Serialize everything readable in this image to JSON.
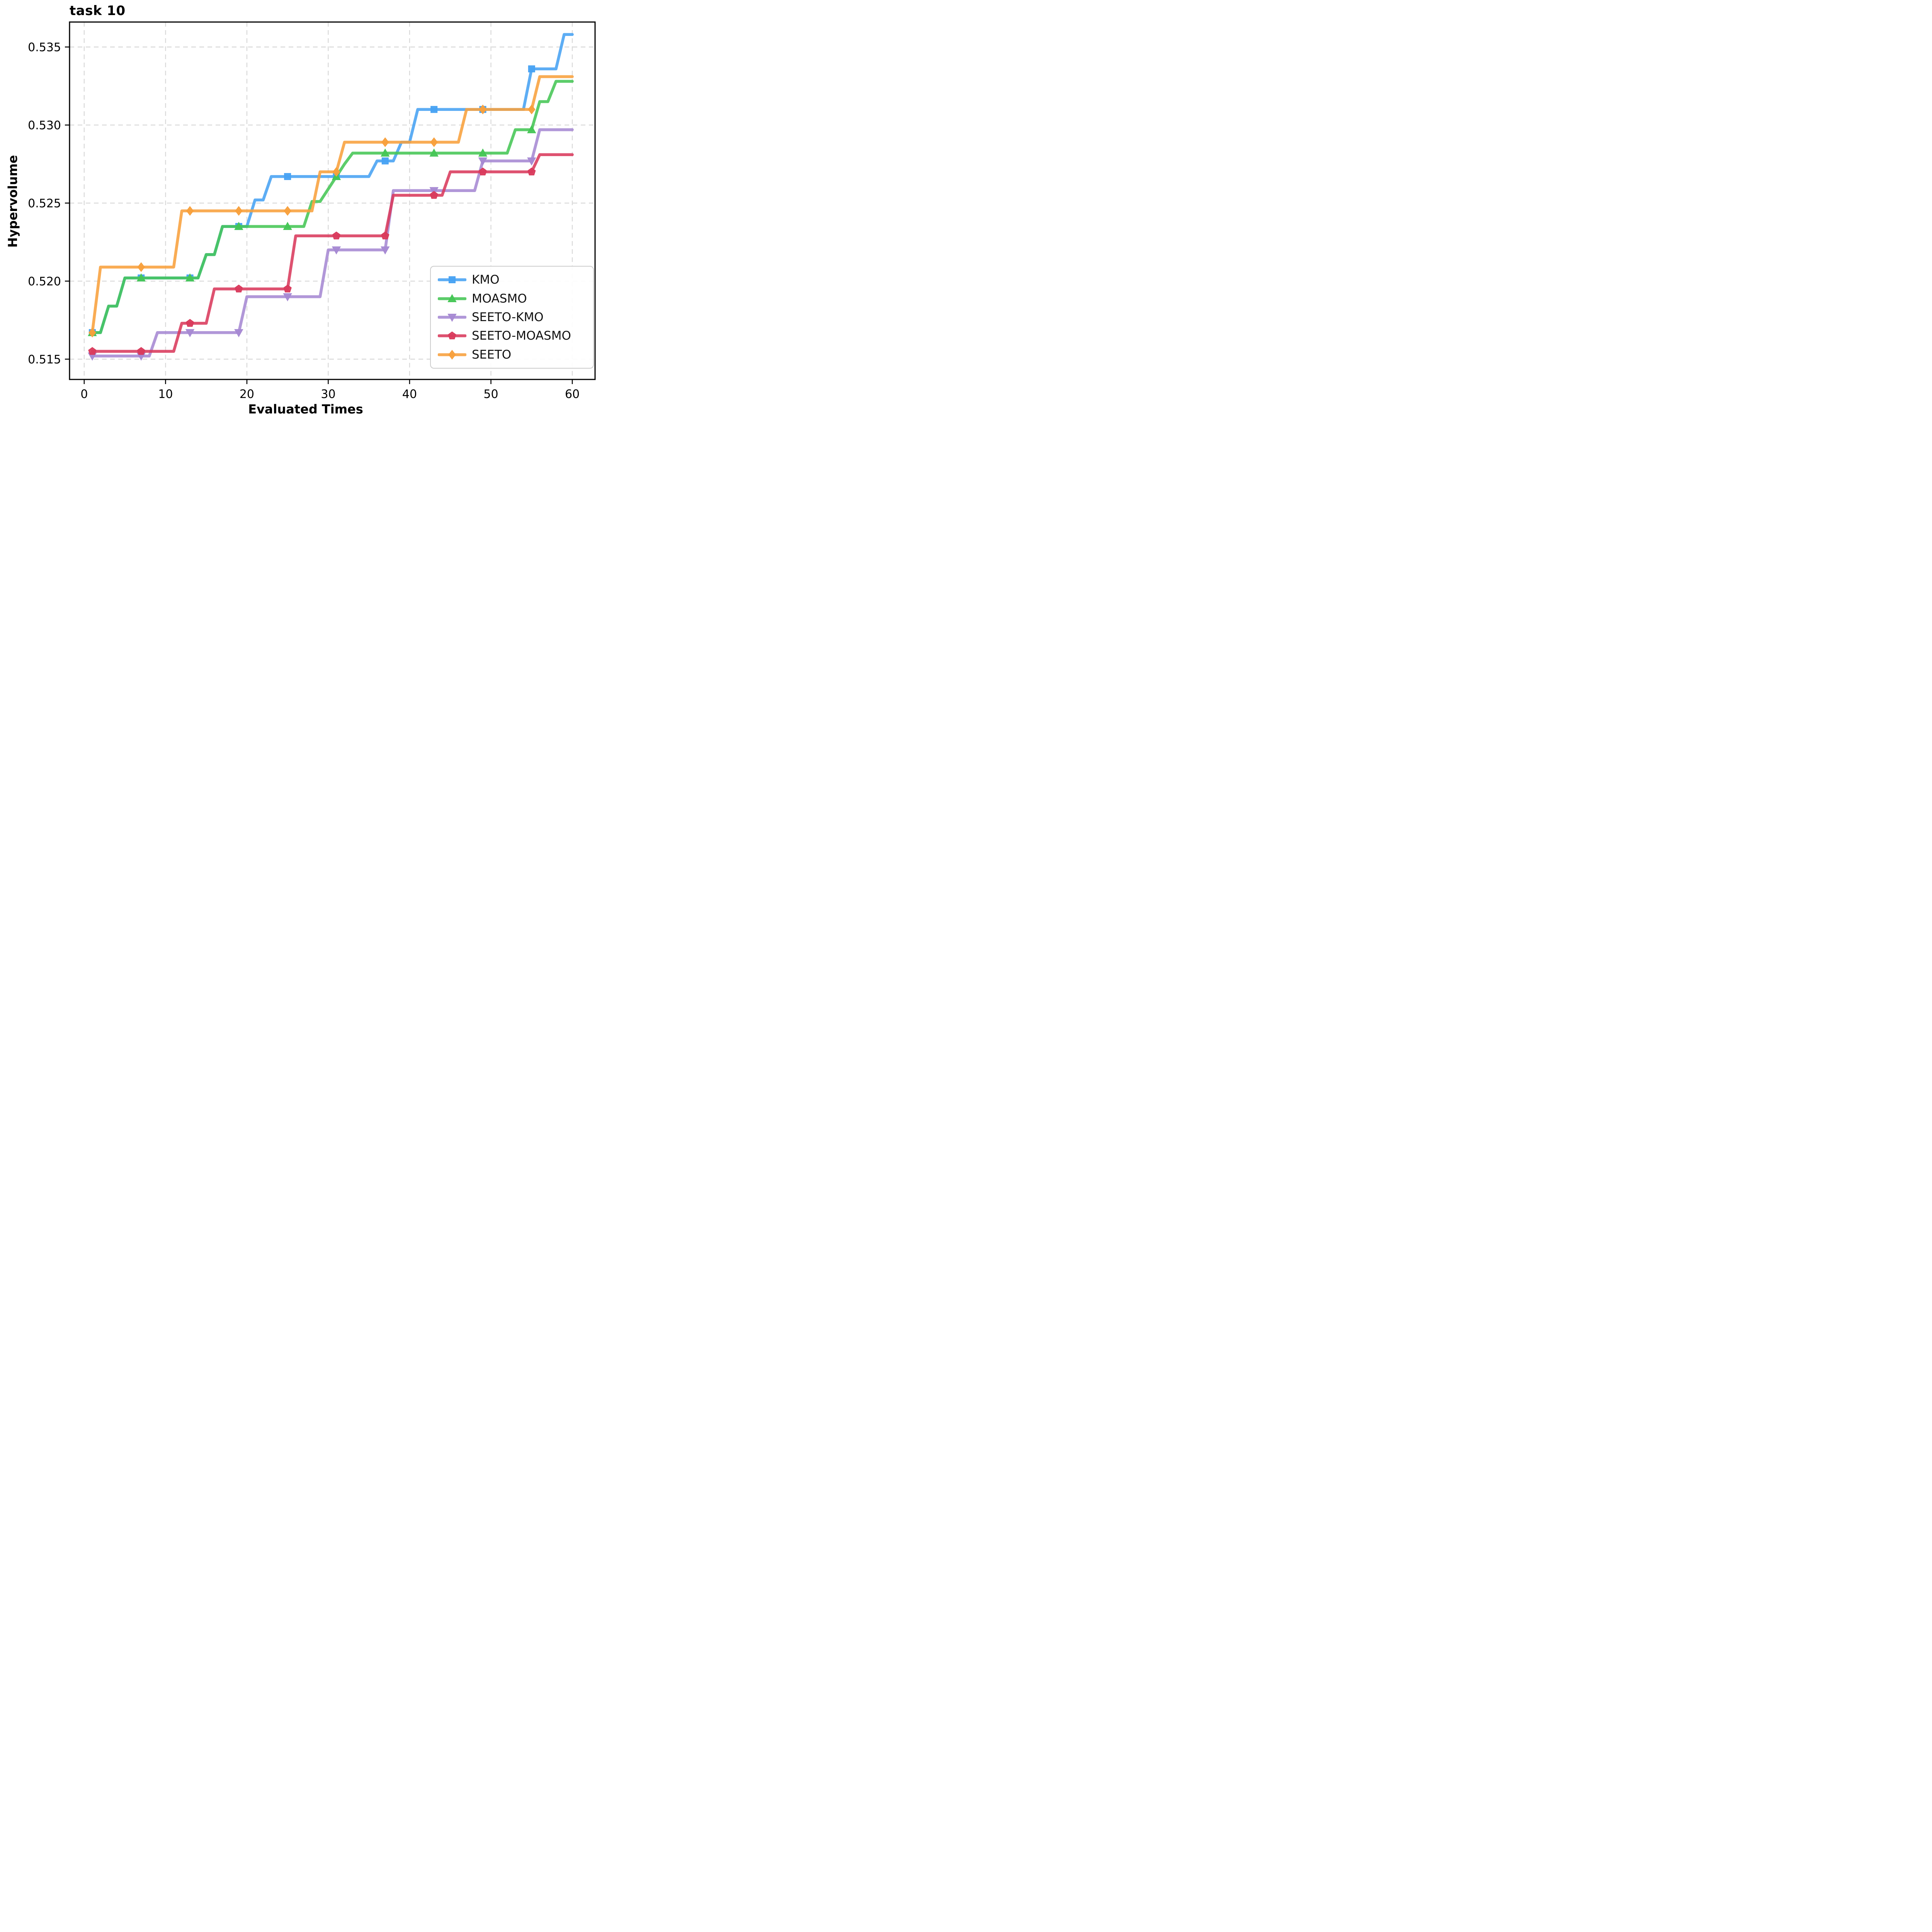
{
  "figure": {
    "title": "task 10"
  },
  "chart_data": {
    "type": "line",
    "title": "task 10",
    "xlabel": "Evaluated Times",
    "ylabel": "Hypervolume",
    "xlim": [
      -1.8,
      62.8
    ],
    "ylim": [
      0.5137,
      0.5366
    ],
    "x_ticks": [
      0,
      10,
      20,
      30,
      40,
      50,
      60
    ],
    "x_tick_labels": [
      "0",
      "10",
      "20",
      "30",
      "40",
      "50",
      "60"
    ],
    "y_ticks": [
      0.515,
      0.52,
      0.525,
      0.53,
      0.535
    ],
    "y_tick_labels": [
      "0.515",
      "0.520",
      "0.525",
      "0.530",
      "0.535"
    ],
    "grid": true,
    "grid_style": "dashed",
    "grid_color": "#d9d9d9",
    "legend_position": "lower right",
    "marker_x": [
      1,
      7,
      13,
      19,
      25,
      31,
      37,
      43,
      49,
      55
    ],
    "series": [
      {
        "name": "KMO",
        "color": "#47A2F3",
        "marker": "square",
        "points": [
          [
            1,
            0.5167
          ],
          [
            2,
            0.5167
          ],
          [
            3,
            0.5184
          ],
          [
            4,
            0.5184
          ],
          [
            5,
            0.5202
          ],
          [
            14,
            0.5202
          ],
          [
            15,
            0.5217
          ],
          [
            16,
            0.5217
          ],
          [
            17,
            0.5235
          ],
          [
            20,
            0.5235
          ],
          [
            21,
            0.5252
          ],
          [
            22,
            0.5252
          ],
          [
            23,
            0.5267
          ],
          [
            35,
            0.5267
          ],
          [
            36,
            0.5277
          ],
          [
            38,
            0.5277
          ],
          [
            39,
            0.5289
          ],
          [
            40,
            0.5289
          ],
          [
            41,
            0.531
          ],
          [
            54,
            0.531
          ],
          [
            55,
            0.5336
          ],
          [
            58,
            0.5336
          ],
          [
            59,
            0.5358
          ],
          [
            60,
            0.5358
          ]
        ]
      },
      {
        "name": "MOASMO",
        "color": "#45C655",
        "marker": "triangle-up",
        "points": [
          [
            1,
            0.5167
          ],
          [
            2,
            0.5167
          ],
          [
            3,
            0.5184
          ],
          [
            4,
            0.5184
          ],
          [
            5,
            0.5202
          ],
          [
            14,
            0.5202
          ],
          [
            15,
            0.5217
          ],
          [
            16,
            0.5217
          ],
          [
            17,
            0.5235
          ],
          [
            27,
            0.5235
          ],
          [
            28,
            0.5251
          ],
          [
            29,
            0.5251
          ],
          [
            30,
            0.5259
          ],
          [
            31,
            0.5267
          ],
          [
            32,
            0.5275
          ],
          [
            33,
            0.5282
          ],
          [
            52,
            0.5282
          ],
          [
            53,
            0.5297
          ],
          [
            55,
            0.5297
          ],
          [
            56,
            0.5315
          ],
          [
            57,
            0.5315
          ],
          [
            58,
            0.5328
          ],
          [
            60,
            0.5328
          ]
        ]
      },
      {
        "name": "SEETO-KMO",
        "color": "#A689D3",
        "marker": "triangle-down",
        "points": [
          [
            1,
            0.5152
          ],
          [
            8,
            0.5152
          ],
          [
            9,
            0.5167
          ],
          [
            19,
            0.5167
          ],
          [
            20,
            0.519
          ],
          [
            29,
            0.519
          ],
          [
            30,
            0.522
          ],
          [
            37,
            0.522
          ],
          [
            38,
            0.5258
          ],
          [
            48,
            0.5258
          ],
          [
            49,
            0.5277
          ],
          [
            55,
            0.5277
          ],
          [
            56,
            0.5297
          ],
          [
            60,
            0.5297
          ]
        ]
      },
      {
        "name": "SEETO-MOASMO",
        "color": "#D93A5C",
        "marker": "pentagon",
        "points": [
          [
            1,
            0.5155
          ],
          [
            11,
            0.5155
          ],
          [
            12,
            0.5173
          ],
          [
            15,
            0.5173
          ],
          [
            16,
            0.5195
          ],
          [
            25,
            0.5195
          ],
          [
            26,
            0.5229
          ],
          [
            37,
            0.5229
          ],
          [
            38,
            0.5255
          ],
          [
            44,
            0.5255
          ],
          [
            45,
            0.527
          ],
          [
            55,
            0.527
          ],
          [
            56,
            0.5281
          ],
          [
            60,
            0.5281
          ]
        ]
      },
      {
        "name": "SEETO",
        "color": "#F8A03C",
        "marker": "diamond",
        "points": [
          [
            1,
            0.5167
          ],
          [
            2,
            0.5209
          ],
          [
            11,
            0.5209
          ],
          [
            12,
            0.5245
          ],
          [
            28,
            0.5245
          ],
          [
            29,
            0.527
          ],
          [
            31,
            0.527
          ],
          [
            32,
            0.5289
          ],
          [
            46,
            0.5289
          ],
          [
            47,
            0.531
          ],
          [
            55,
            0.531
          ],
          [
            56,
            0.5331
          ],
          [
            60,
            0.5331
          ]
        ]
      }
    ]
  }
}
